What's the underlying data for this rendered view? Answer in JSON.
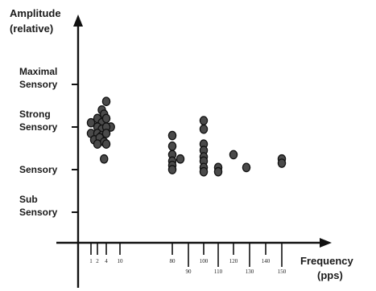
{
  "chart_data": {
    "type": "scatter",
    "title": "",
    "ylabel": [
      "Amplitude",
      "(relative)"
    ],
    "xlabel": [
      "Frequency",
      "(pps)"
    ],
    "y_levels": [
      {
        "lines": [
          "Maximal",
          "Sensory"
        ],
        "value": 3
      },
      {
        "lines": [
          "Strong",
          "Sensory"
        ],
        "value": 2
      },
      {
        "lines": [
          "Sensory"
        ],
        "value": 1
      },
      {
        "lines": [
          "Sub",
          "Sensory"
        ],
        "value": 0
      }
    ],
    "x_ticks": [
      {
        "label": "1",
        "value": 1,
        "row": "upper"
      },
      {
        "label": "2",
        "value": 2,
        "row": "upper"
      },
      {
        "label": "4",
        "value": 4,
        "row": "upper"
      },
      {
        "label": "10",
        "value": 10,
        "row": "upper"
      },
      {
        "label": "80",
        "value": 80,
        "row": "upper"
      },
      {
        "label": "90",
        "value": 90,
        "row": "lower"
      },
      {
        "label": "100",
        "value": 100,
        "row": "upper"
      },
      {
        "label": "110",
        "value": 110,
        "row": "lower"
      },
      {
        "label": "120",
        "value": 120,
        "row": "upper"
      },
      {
        "label": "130",
        "value": 130,
        "row": "lower"
      },
      {
        "label": "140",
        "value": 140,
        "row": "upper"
      },
      {
        "label": "150",
        "value": 150,
        "row": "lower"
      }
    ],
    "points": [
      {
        "x": 3,
        "y": 2.4
      },
      {
        "x": 4,
        "y": 2.6
      },
      {
        "x": 3.5,
        "y": 2.3
      },
      {
        "x": 1,
        "y": 2.1
      },
      {
        "x": 2,
        "y": 2.2
      },
      {
        "x": 3,
        "y": 2.1
      },
      {
        "x": 4,
        "y": 2.2
      },
      {
        "x": 6,
        "y": 2.0
      },
      {
        "x": 2,
        "y": 2.0
      },
      {
        "x": 3,
        "y": 1.95
      },
      {
        "x": 4,
        "y": 2.0
      },
      {
        "x": 1,
        "y": 1.85
      },
      {
        "x": 2,
        "y": 1.85
      },
      {
        "x": 3,
        "y": 1.8
      },
      {
        "x": 4,
        "y": 1.85
      },
      {
        "x": 1.5,
        "y": 1.7
      },
      {
        "x": 2.5,
        "y": 1.75
      },
      {
        "x": 3.5,
        "y": 1.65
      },
      {
        "x": 2,
        "y": 1.6
      },
      {
        "x": 4,
        "y": 1.6
      },
      {
        "x": 3.5,
        "y": 1.25
      },
      {
        "x": 80,
        "y": 1.8
      },
      {
        "x": 80,
        "y": 1.55
      },
      {
        "x": 80,
        "y": 1.35
      },
      {
        "x": 80,
        "y": 1.2
      },
      {
        "x": 80,
        "y": 1.1
      },
      {
        "x": 80,
        "y": 1.0
      },
      {
        "x": 85,
        "y": 1.25
      },
      {
        "x": 100,
        "y": 2.15
      },
      {
        "x": 100,
        "y": 1.95
      },
      {
        "x": 100,
        "y": 1.6
      },
      {
        "x": 100,
        "y": 1.45
      },
      {
        "x": 100,
        "y": 1.3
      },
      {
        "x": 100,
        "y": 1.2
      },
      {
        "x": 100,
        "y": 1.05
      },
      {
        "x": 100,
        "y": 0.95
      },
      {
        "x": 110,
        "y": 1.05
      },
      {
        "x": 110,
        "y": 0.95
      },
      {
        "x": 120,
        "y": 1.35
      },
      {
        "x": 128,
        "y": 1.05
      },
      {
        "x": 150,
        "y": 1.25
      },
      {
        "x": 150,
        "y": 1.15
      }
    ],
    "grid": false,
    "legend": "none"
  }
}
